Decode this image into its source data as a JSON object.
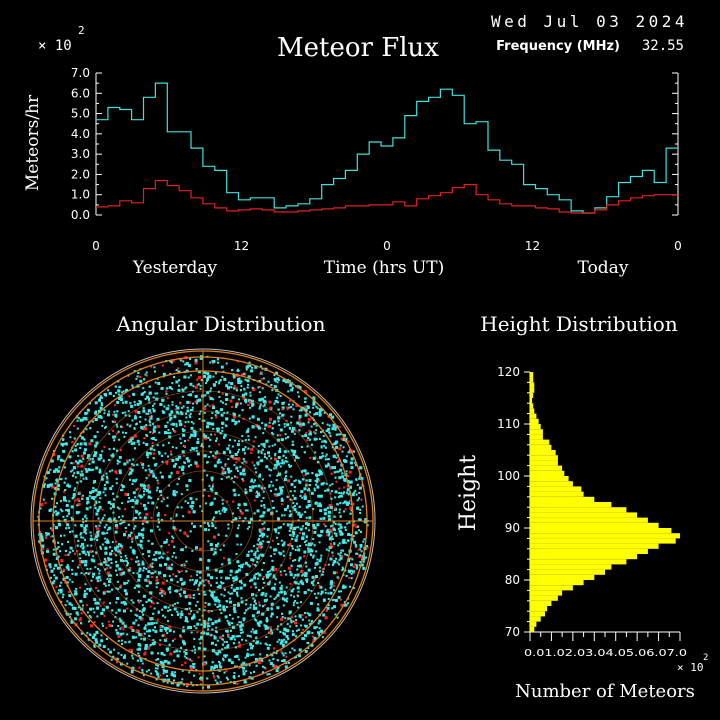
{
  "header": {
    "date": "Wed Jul 03 2024",
    "frequency_label": "Frequency (MHz)",
    "frequency_value": "32.55"
  },
  "colors": {
    "background": "#000000",
    "text": "#ffffff",
    "flux_total": "#40e0e0",
    "flux_subset": "#e02020",
    "height_bars": "#ffff00",
    "angular_grid": "#e08020",
    "angular_points": "#40e8e8",
    "angular_points_alt": "#ff2020"
  },
  "chart_data": [
    {
      "type": "line",
      "title": "Meteor Flux",
      "ylabel": "Meteors/hr",
      "xlabel": "Time (hrs UT)",
      "y_multiplier": "× 10",
      "y_multiplier_exp": "2",
      "ylim": [
        0,
        7
      ],
      "yticks": [
        "0.0",
        "1.0",
        "2.0",
        "3.0",
        "4.0",
        "5.0",
        "6.0",
        "7.0"
      ],
      "xlim": [
        0,
        48
      ],
      "xticks": [
        {
          "x": 0,
          "label": "0"
        },
        {
          "x": 12,
          "label": "12"
        },
        {
          "x": 24,
          "label": "0"
        },
        {
          "x": 36,
          "label": "12"
        },
        {
          "x": 48,
          "label": "0"
        }
      ],
      "day_labels": [
        "Yesterday",
        "Today"
      ],
      "step": true,
      "series": [
        {
          "color": "#40e0e0",
          "values": [
            4.7,
            5.3,
            5.2,
            4.7,
            5.8,
            6.5,
            4.1,
            4.1,
            3.3,
            2.4,
            2.2,
            1.1,
            0.75,
            0.85,
            0.85,
            0.35,
            0.45,
            0.55,
            0.8,
            1.5,
            1.8,
            2.2,
            3.0,
            3.6,
            3.4,
            3.8,
            4.9,
            5.6,
            5.8,
            6.2,
            5.9,
            4.5,
            4.6,
            3.2,
            2.7,
            2.5,
            1.5,
            1.3,
            1.0,
            0.75,
            0.2,
            0.1,
            0.35,
            0.9,
            1.6,
            1.9,
            2.2,
            1.6,
            3.3
          ]
        },
        {
          "color": "#e02020",
          "values": [
            0.4,
            0.45,
            0.7,
            0.6,
            1.3,
            1.7,
            1.45,
            1.2,
            0.85,
            0.55,
            0.35,
            0.2,
            0.25,
            0.3,
            0.25,
            0.15,
            0.15,
            0.2,
            0.25,
            0.3,
            0.35,
            0.45,
            0.45,
            0.5,
            0.5,
            0.65,
            0.45,
            0.8,
            0.95,
            1.1,
            1.35,
            1.5,
            1.0,
            0.75,
            0.55,
            0.45,
            0.45,
            0.35,
            0.3,
            0.15,
            0.1,
            0.1,
            0.25,
            0.5,
            0.7,
            0.85,
            0.95,
            1.0,
            1.0
          ]
        }
      ]
    },
    {
      "type": "scatter",
      "title": "Angular Distribution"
    },
    {
      "type": "bar",
      "orientation": "horizontal",
      "title": "Height Distribution",
      "ylabel": "Height",
      "xlabel": "Number of Meteors",
      "x_multiplier": "× 10",
      "x_multiplier_exp": "2",
      "ylim": [
        70,
        120
      ],
      "yticks": [
        "70",
        "80",
        "90",
        "100",
        "110",
        "120"
      ],
      "xlim": [
        0,
        7
      ],
      "xtick_labels": "0.01.02.03.04.05.06.07.0",
      "bin_width": 1,
      "bins_start": [
        70,
        71,
        72,
        73,
        74,
        75,
        76,
        77,
        78,
        79,
        80,
        81,
        82,
        83,
        84,
        85,
        86,
        87,
        88,
        89,
        90,
        91,
        92,
        93,
        94,
        95,
        96,
        97,
        98,
        99,
        100,
        101,
        102,
        103,
        104,
        105,
        106,
        107,
        108,
        109,
        110,
        111,
        112,
        113,
        114,
        115,
        116,
        117,
        118,
        119
      ],
      "values": [
        0.2,
        0.3,
        0.5,
        0.7,
        0.8,
        1.0,
        1.3,
        1.5,
        2.0,
        2.5,
        3.0,
        3.5,
        3.8,
        4.5,
        5.0,
        5.5,
        6.0,
        6.8,
        7.0,
        6.6,
        6.0,
        5.5,
        5.0,
        4.5,
        3.8,
        3.0,
        2.5,
        2.4,
        2.0,
        1.8,
        1.6,
        1.5,
        1.3,
        1.3,
        1.2,
        1.0,
        0.9,
        0.6,
        0.6,
        0.5,
        0.4,
        0.3,
        0.2,
        0.15,
        0.1,
        0.15,
        0.2,
        0.2,
        0.15,
        0.15
      ]
    }
  ]
}
